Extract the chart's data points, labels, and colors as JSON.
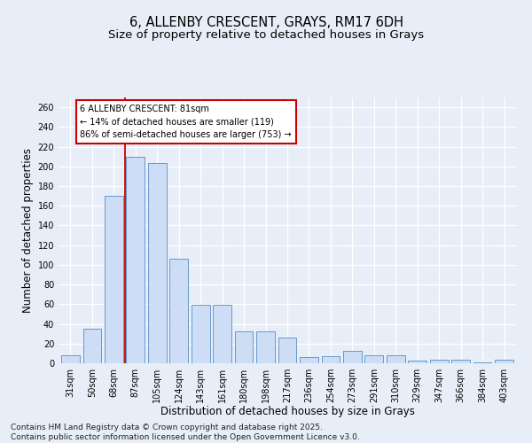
{
  "title_line1": "6, ALLENBY CRESCENT, GRAYS, RM17 6DH",
  "title_line2": "Size of property relative to detached houses in Grays",
  "xlabel": "Distribution of detached houses by size in Grays",
  "ylabel": "Number of detached properties",
  "categories": [
    "31sqm",
    "50sqm",
    "68sqm",
    "87sqm",
    "105sqm",
    "124sqm",
    "143sqm",
    "161sqm",
    "180sqm",
    "198sqm",
    "217sqm",
    "236sqm",
    "254sqm",
    "273sqm",
    "291sqm",
    "310sqm",
    "329sqm",
    "347sqm",
    "366sqm",
    "384sqm",
    "403sqm"
  ],
  "values": [
    8,
    35,
    170,
    210,
    203,
    106,
    59,
    59,
    32,
    32,
    26,
    6,
    7,
    13,
    8,
    8,
    3,
    4,
    4,
    1,
    4
  ],
  "bar_color": "#ccddf5",
  "bar_edge_color": "#6699cc",
  "vline_x": 2.5,
  "vline_color": "#cc0000",
  "annotation_text": "6 ALLENBY CRESCENT: 81sqm\n← 14% of detached houses are smaller (119)\n86% of semi-detached houses are larger (753) →",
  "ylim": [
    0,
    270
  ],
  "yticks": [
    0,
    20,
    40,
    60,
    80,
    100,
    120,
    140,
    160,
    180,
    200,
    220,
    240,
    260
  ],
  "footer_text": "Contains HM Land Registry data © Crown copyright and database right 2025.\nContains public sector information licensed under the Open Government Licence v3.0.",
  "background_color": "#e8eef8",
  "plot_background_color": "#e8eef8",
  "grid_color": "#ffffff",
  "title_fontsize": 10.5,
  "subtitle_fontsize": 9.5,
  "axis_label_fontsize": 8.5,
  "tick_fontsize": 7,
  "annotation_fontsize": 7,
  "footer_fontsize": 6.5
}
